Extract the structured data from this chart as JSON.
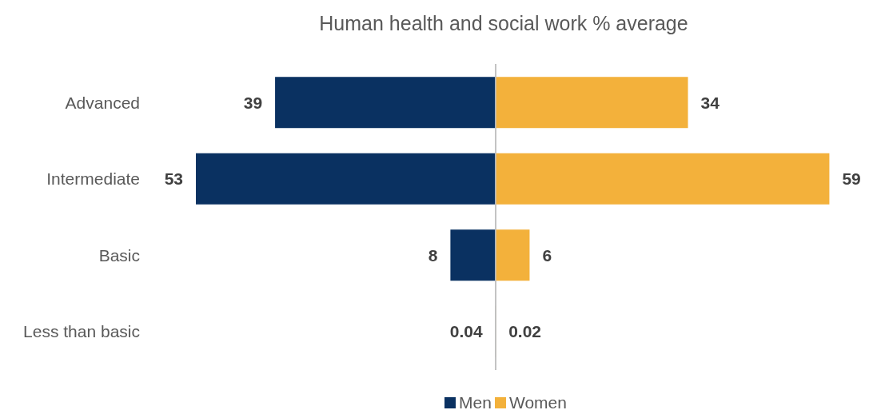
{
  "chart_data": [
    {
      "type": "bar",
      "orientation": "horizontal",
      "title": "Human health and social work % average",
      "categories": [
        "Advanced",
        "Intermediate",
        "Basic",
        "Less than basic"
      ],
      "xlim": [
        53,
        0
      ],
      "legend": "bottom",
      "data_labels": true,
      "series": [
        {
          "name": "Men",
          "color": "#0a3161",
          "values": [
            39,
            53,
            8,
            0.04
          ]
        }
      ]
    },
    {
      "type": "bar",
      "orientation": "horizontal",
      "categories": [
        null,
        null,
        null,
        null
      ],
      "xlim": [
        0,
        59
      ],
      "legend": "bottom",
      "data_labels": true,
      "series": [
        {
          "name": "Women",
          "color": "#f3b13b",
          "values": [
            34,
            59,
            6,
            0.02
          ]
        }
      ]
    }
  ]
}
